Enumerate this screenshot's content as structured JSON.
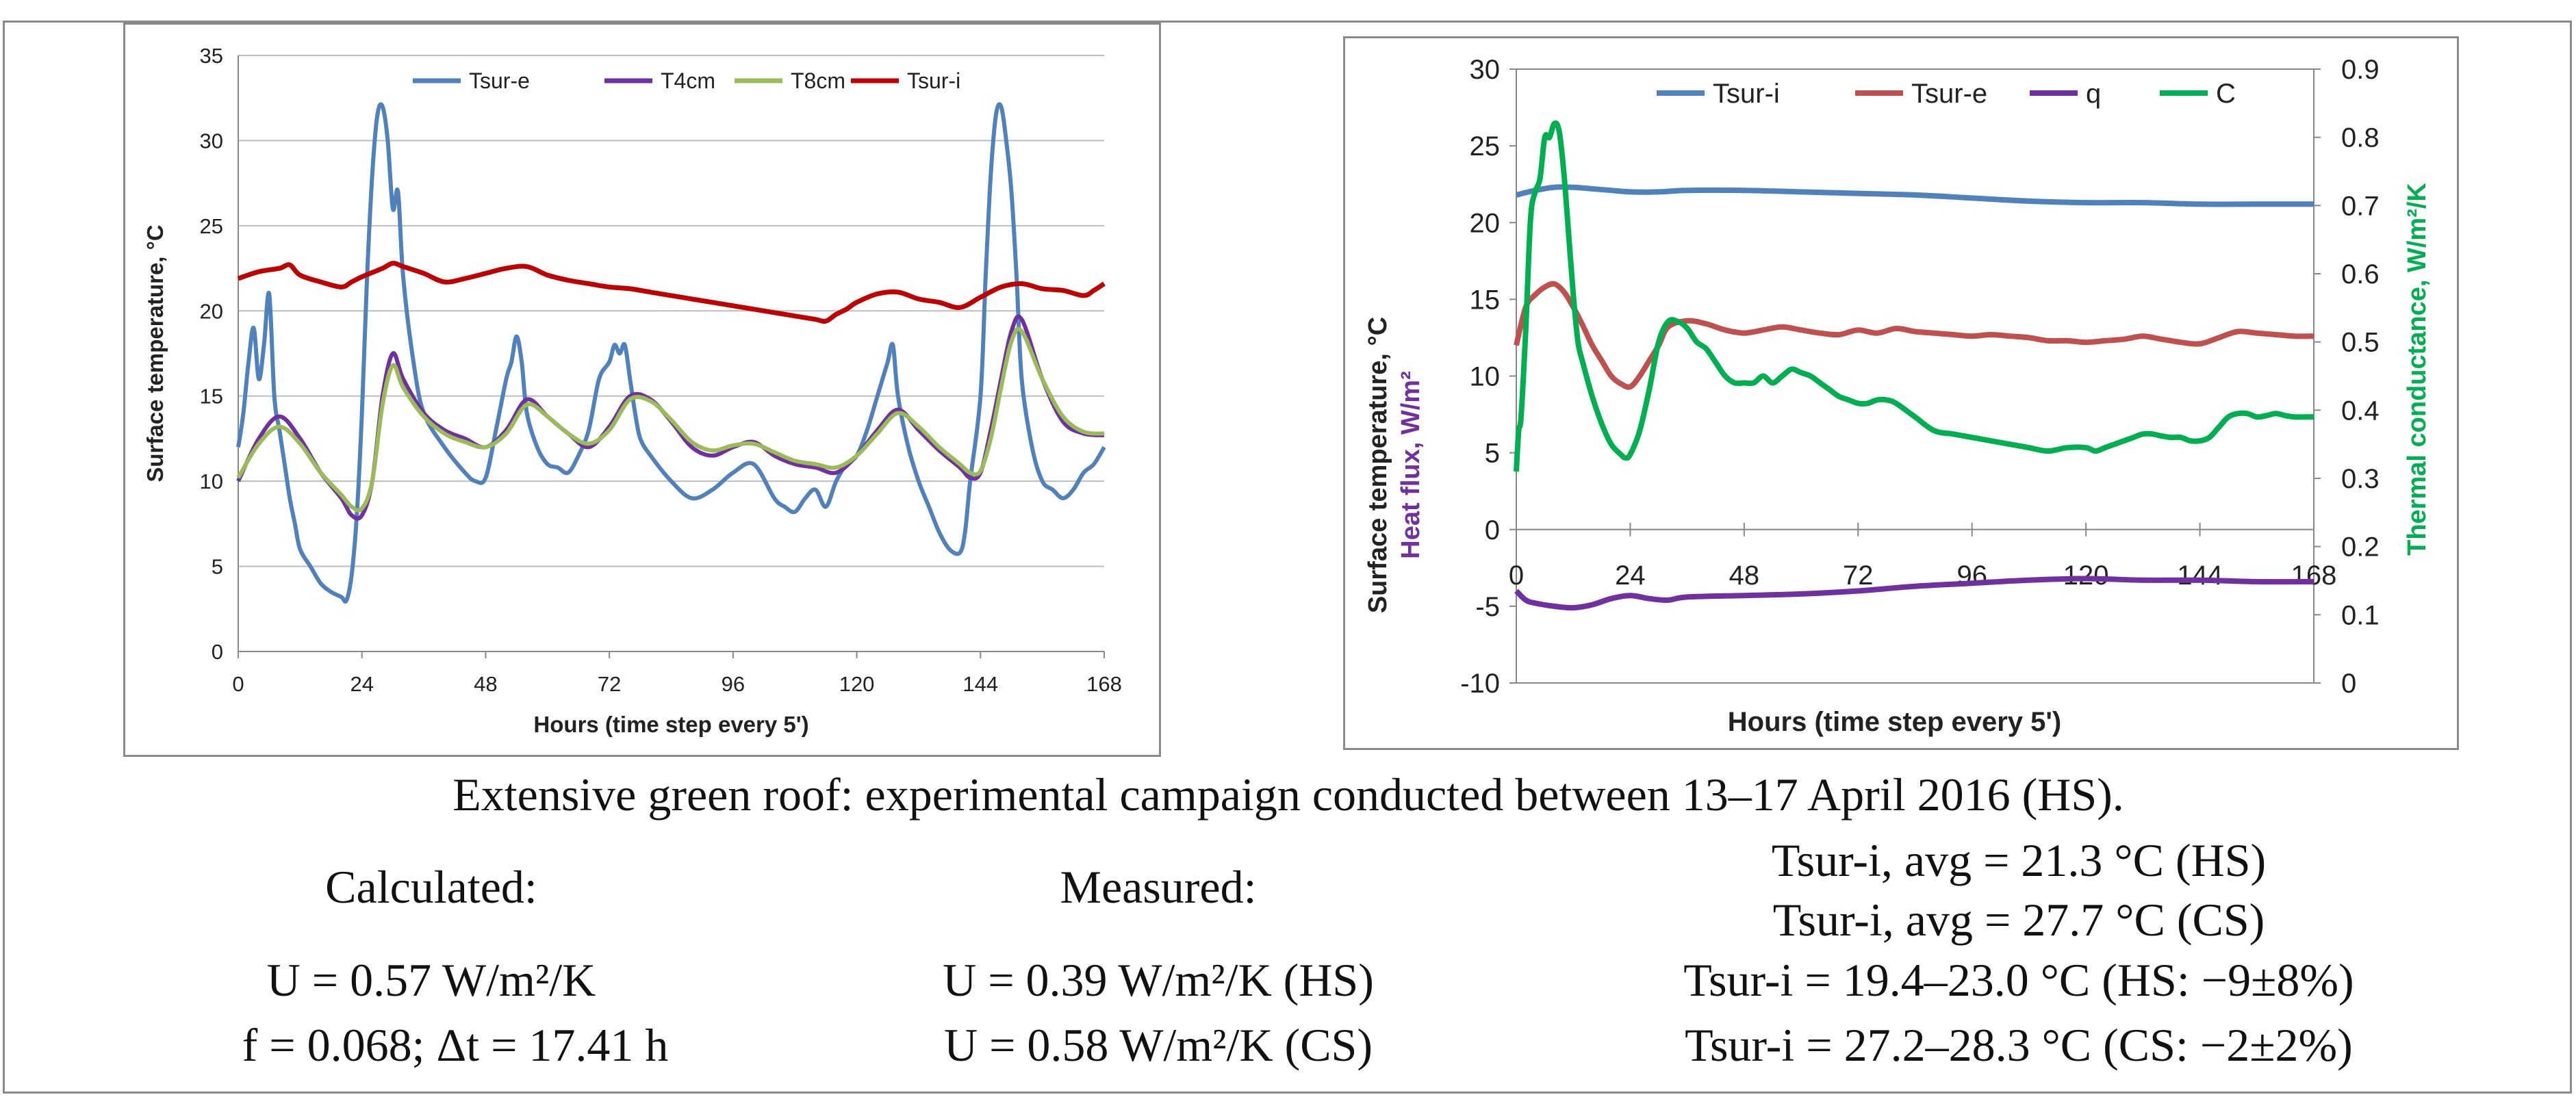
{
  "chart_data": [
    {
      "type": "line",
      "title": "",
      "xlabel": "Hours (time step every 5')",
      "ylabel": "Surface temperature, °C",
      "xlim": [
        0,
        168
      ],
      "ylim": [
        0,
        35
      ],
      "xticks": [
        "0",
        "24",
        "48",
        "72",
        "96",
        "120",
        "144",
        "168"
      ],
      "yticks": [
        "0",
        "5",
        "10",
        "15",
        "20",
        "25",
        "30",
        "35"
      ],
      "legend": {
        "position": "top",
        "entries": [
          "Tsur-e",
          "T4cm",
          "T8cm",
          "Tsur-i"
        ]
      },
      "series": [
        {
          "name": "Tsur-e",
          "color": "#4f81bd",
          "x": [
            0,
            1,
            2,
            3,
            4,
            5,
            6,
            7,
            8,
            9,
            10,
            11,
            12,
            14,
            16,
            18,
            20,
            21,
            22,
            23,
            24,
            25,
            26,
            27,
            28,
            29,
            30,
            31,
            32,
            34,
            36,
            40,
            44,
            46,
            48,
            50,
            52,
            53,
            54,
            55,
            56,
            58,
            60,
            62,
            64,
            66,
            68,
            70,
            72,
            73,
            74,
            75,
            76,
            77,
            78,
            80,
            84,
            88,
            92,
            96,
            100,
            104,
            106,
            108,
            110,
            112,
            114,
            116,
            118,
            120,
            122,
            124,
            125,
            126,
            127,
            128,
            130,
            132,
            134,
            136,
            138,
            140,
            141,
            142,
            144,
            145,
            146,
            147,
            148,
            149,
            150,
            151,
            152,
            154,
            156,
            158,
            160,
            162,
            164,
            166,
            168
          ],
          "y": [
            12,
            14,
            17,
            19,
            16,
            18,
            21,
            15,
            13,
            11,
            9,
            7.5,
            6,
            5,
            4,
            3.5,
            3.2,
            3,
            4.5,
            8,
            14,
            22,
            28,
            31.5,
            32,
            30,
            26,
            27,
            22,
            17,
            14,
            12,
            10.5,
            10,
            10.2,
            13,
            16,
            17,
            18.5,
            17,
            14,
            12,
            11,
            10.8,
            10.5,
            11.5,
            13,
            16,
            17,
            18,
            17.5,
            18,
            16,
            14,
            12.5,
            11.5,
            10,
            9,
            9.5,
            10.5,
            11,
            9,
            8.5,
            8.2,
            9,
            9.5,
            8.5,
            10,
            11,
            11.5,
            13,
            15,
            16,
            17,
            18,
            15,
            12,
            10,
            8.5,
            7,
            6,
            5.8,
            7,
            10,
            15,
            22,
            28,
            31.5,
            32,
            30,
            27,
            22,
            16,
            12,
            10,
            9.5,
            9,
            9.5,
            10.5,
            11,
            12
          ]
        },
        {
          "name": "T4cm",
          "color": "#7030a0",
          "x": [
            0,
            4,
            8,
            12,
            16,
            20,
            22,
            24,
            26,
            28,
            30,
            32,
            36,
            40,
            44,
            48,
            52,
            56,
            60,
            64,
            68,
            72,
            76,
            80,
            84,
            88,
            92,
            96,
            100,
            104,
            108,
            112,
            116,
            120,
            124,
            128,
            132,
            136,
            140,
            142,
            144,
            146,
            148,
            150,
            152,
            156,
            160,
            164,
            168
          ],
          "y": [
            10,
            12.5,
            13.8,
            12.5,
            10.5,
            9,
            8,
            8,
            10,
            15,
            17.5,
            16,
            14,
            13,
            12.5,
            12,
            13,
            14.8,
            13.8,
            12.8,
            12,
            13.2,
            15,
            14.8,
            13.5,
            12,
            11.5,
            12,
            12.3,
            11.5,
            11,
            10.8,
            10.5,
            11.5,
            13,
            14.2,
            13,
            11.8,
            10.8,
            10.2,
            10.5,
            13,
            16,
            18.8,
            19.5,
            16,
            13.5,
            12.8,
            12.7
          ]
        },
        {
          "name": "T8cm",
          "color": "#9bbb59",
          "x": [
            0,
            4,
            8,
            12,
            16,
            20,
            22,
            24,
            26,
            28,
            30,
            32,
            36,
            40,
            44,
            48,
            52,
            56,
            60,
            64,
            68,
            72,
            76,
            80,
            84,
            88,
            92,
            96,
            100,
            104,
            108,
            112,
            116,
            120,
            124,
            128,
            132,
            136,
            140,
            142,
            144,
            146,
            148,
            150,
            152,
            156,
            160,
            164,
            168
          ],
          "y": [
            10.2,
            12.2,
            13.2,
            12.2,
            10.5,
            9.2,
            8.5,
            8.4,
            10,
            14.5,
            16.8,
            15.5,
            13.8,
            12.8,
            12.3,
            12,
            12.8,
            14.5,
            13.8,
            12.8,
            12.2,
            13,
            14.8,
            14.7,
            13.6,
            12.3,
            11.8,
            12.1,
            12.2,
            11.7,
            11.2,
            11,
            10.8,
            11.5,
            12.8,
            14,
            13.2,
            12,
            11,
            10.5,
            10.6,
            12.5,
            15.5,
            18.2,
            18.8,
            16,
            13.8,
            12.9,
            12.8
          ]
        },
        {
          "name": "Tsur-i",
          "color": "#c00000",
          "x": [
            0,
            4,
            8,
            10,
            12,
            16,
            20,
            22,
            24,
            28,
            30,
            32,
            36,
            40,
            44,
            48,
            52,
            56,
            60,
            64,
            68,
            72,
            76,
            80,
            84,
            88,
            92,
            96,
            100,
            104,
            108,
            112,
            114,
            116,
            118,
            120,
            124,
            128,
            132,
            136,
            140,
            144,
            148,
            152,
            156,
            160,
            164,
            166,
            168
          ],
          "y": [
            21.9,
            22.3,
            22.5,
            22.7,
            22.1,
            21.7,
            21.4,
            21.7,
            22,
            22.5,
            22.8,
            22.6,
            22.2,
            21.7,
            21.9,
            22.2,
            22.5,
            22.6,
            22.1,
            21.8,
            21.6,
            21.4,
            21.3,
            21.1,
            20.9,
            20.7,
            20.5,
            20.3,
            20.1,
            19.9,
            19.7,
            19.5,
            19.4,
            19.8,
            20.1,
            20.5,
            21,
            21.1,
            20.7,
            20.5,
            20.2,
            20.8,
            21.4,
            21.6,
            21.3,
            21.2,
            20.9,
            21.2,
            21.6
          ]
        }
      ]
    },
    {
      "type": "line",
      "title": "",
      "xlabel": "Hours (time step every 5')",
      "ylabel": "Surface temperature, °C",
      "ylabel_secondary": "Heat flux, W/m²",
      "y2label": "Thermal conductance, W/m²/K",
      "xlim": [
        0,
        168
      ],
      "ylim": [
        -10,
        30
      ],
      "y2lim": [
        0,
        0.9
      ],
      "xticks": [
        "0",
        "24",
        "48",
        "72",
        "96",
        "120",
        "144",
        "168"
      ],
      "yticks": [
        "-10",
        "-5",
        "0",
        "5",
        "10",
        "15",
        "20",
        "25",
        "30"
      ],
      "y2ticks": [
        "0",
        "0.1",
        "0.2",
        "0.3",
        "0.4",
        "0.5",
        "0.6",
        "0.7",
        "0.8",
        "0.9"
      ],
      "legend": {
        "position": "top",
        "entries": [
          "Tsur-i",
          "Tsur-e",
          "q",
          "C"
        ]
      },
      "series": [
        {
          "name": "Tsur-i",
          "axis": "left",
          "color": "#4f81bd",
          "x": [
            0,
            4,
            8,
            12,
            16,
            20,
            24,
            30,
            36,
            48,
            60,
            72,
            84,
            96,
            108,
            120,
            132,
            144,
            156,
            168
          ],
          "y": [
            21.8,
            22.1,
            22.3,
            22.3,
            22.2,
            22.1,
            22,
            22,
            22.1,
            22.1,
            22,
            21.9,
            21.8,
            21.6,
            21.4,
            21.3,
            21.3,
            21.2,
            21.2,
            21.2
          ]
        },
        {
          "name": "Tsur-e",
          "axis": "left",
          "color": "#c0504d",
          "x": [
            0,
            2,
            4,
            6,
            8,
            10,
            12,
            14,
            16,
            18,
            20,
            22,
            24,
            26,
            28,
            30,
            32,
            36,
            40,
            44,
            48,
            52,
            56,
            60,
            64,
            68,
            72,
            76,
            80,
            84,
            88,
            92,
            96,
            100,
            104,
            108,
            112,
            116,
            120,
            124,
            128,
            132,
            136,
            140,
            144,
            148,
            152,
            156,
            160,
            164,
            168
          ],
          "y": [
            12,
            14.5,
            15.3,
            15.8,
            16,
            15.5,
            14.5,
            13.3,
            12,
            11,
            10,
            9.5,
            9.3,
            10,
            11,
            12,
            13.2,
            13.6,
            13.4,
            13,
            12.8,
            13,
            13.2,
            13,
            12.8,
            12.7,
            13,
            12.8,
            13.1,
            12.9,
            12.8,
            12.7,
            12.6,
            12.7,
            12.6,
            12.5,
            12.3,
            12.3,
            12.2,
            12.3,
            12.4,
            12.6,
            12.4,
            12.2,
            12.1,
            12.5,
            12.9,
            12.8,
            12.7,
            12.6,
            12.6
          ]
        },
        {
          "name": "q",
          "axis": "left",
          "color": "#7030a0",
          "x": [
            0,
            2,
            4,
            8,
            12,
            16,
            20,
            24,
            28,
            32,
            36,
            48,
            60,
            72,
            84,
            96,
            108,
            120,
            132,
            144,
            156,
            168
          ],
          "y": [
            -4,
            -4.6,
            -4.8,
            -5,
            -5.1,
            -4.9,
            -4.5,
            -4.3,
            -4.5,
            -4.6,
            -4.4,
            -4.3,
            -4.2,
            -4,
            -3.7,
            -3.5,
            -3.3,
            -3.2,
            -3.3,
            -3.3,
            -3.4,
            -3.4
          ]
        },
        {
          "name": "C",
          "axis": "right",
          "color": "#00b050",
          "x": [
            0,
            0.5,
            1,
            2,
            3,
            4,
            5,
            6,
            7,
            8,
            9,
            10,
            11,
            12,
            13,
            14,
            16,
            18,
            20,
            22,
            23,
            24,
            26,
            28,
            30,
            32,
            34,
            36,
            38,
            40,
            42,
            44,
            46,
            48,
            50,
            52,
            54,
            56,
            58,
            60,
            62,
            64,
            66,
            68,
            70,
            72,
            74,
            76,
            78,
            80,
            84,
            88,
            92,
            96,
            100,
            104,
            108,
            112,
            116,
            120,
            122,
            124,
            126,
            128,
            130,
            132,
            134,
            136,
            138,
            140,
            142,
            144,
            146,
            148,
            150,
            152,
            154,
            156,
            158,
            160,
            162,
            164,
            166,
            168
          ],
          "y": [
            0.31,
            0.37,
            0.39,
            0.52,
            0.68,
            0.72,
            0.74,
            0.8,
            0.8,
            0.82,
            0.81,
            0.75,
            0.66,
            0.57,
            0.5,
            0.47,
            0.42,
            0.38,
            0.35,
            0.335,
            0.33,
            0.335,
            0.37,
            0.43,
            0.5,
            0.53,
            0.53,
            0.52,
            0.5,
            0.49,
            0.47,
            0.45,
            0.44,
            0.44,
            0.44,
            0.45,
            0.44,
            0.45,
            0.46,
            0.455,
            0.45,
            0.44,
            0.43,
            0.42,
            0.415,
            0.41,
            0.41,
            0.415,
            0.415,
            0.41,
            0.39,
            0.37,
            0.365,
            0.36,
            0.355,
            0.35,
            0.345,
            0.34,
            0.345,
            0.345,
            0.34,
            0.345,
            0.35,
            0.355,
            0.36,
            0.365,
            0.365,
            0.362,
            0.36,
            0.36,
            0.355,
            0.355,
            0.36,
            0.375,
            0.39,
            0.395,
            0.395,
            0.39,
            0.392,
            0.395,
            0.392,
            0.39,
            0.39,
            0.39
          ]
        }
      ]
    }
  ],
  "caption": {
    "title": "Extensive green roof: experimental campaign conducted between 13–17 April 2016 (HS).",
    "calculated": {
      "label": "Calculated:",
      "u_value": "U = 0.57 W/m²/K",
      "f_value": "f = 0.068; Δt = 17.41 h"
    },
    "measured": {
      "label": "Measured:",
      "u_hs": "U = 0.39 W/m²/K (HS)",
      "u_cs": "U = 0.58 W/m²/K (CS)"
    },
    "tsur": {
      "avg_hs": "Tsur-i, avg = 21.3 °C (HS)",
      "avg_cs": "Tsur-i, avg = 27.7 °C (CS)",
      "range_hs": "Tsur-i = 19.4–23.0 °C (HS: −9±8%)",
      "range_cs": "Tsur-i = 27.2–28.3 °C (CS: −2±2%)"
    }
  }
}
